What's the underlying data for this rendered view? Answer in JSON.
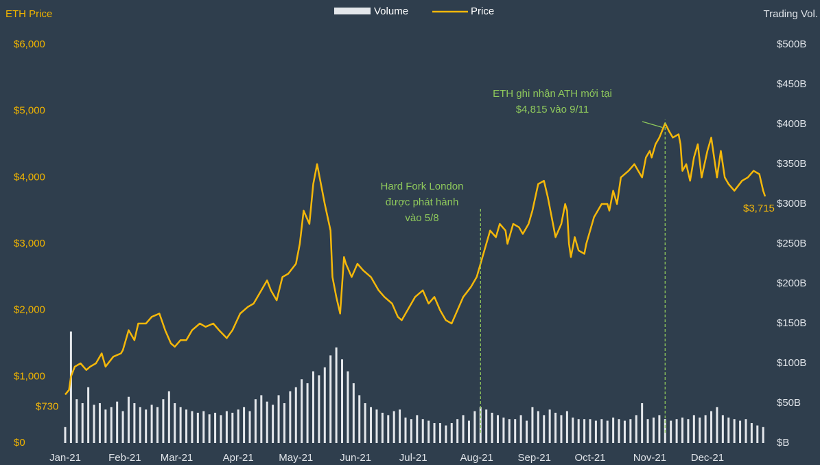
{
  "chart_data": {
    "type": "bar-line",
    "y_label": "ETH Price",
    "y2_label": "Trading Vol.",
    "xlim": [
      0,
      364
    ],
    "xticks": [
      {
        "value": 0,
        "label": "Jan-21"
      },
      {
        "value": 31,
        "label": "Feb-21"
      },
      {
        "value": 58,
        "label": "Mar-21"
      },
      {
        "value": 90,
        "label": "Apr-21"
      },
      {
        "value": 120,
        "label": "May-21"
      },
      {
        "value": 151,
        "label": "Jun-21"
      },
      {
        "value": 181,
        "label": "Jul-21"
      },
      {
        "value": 214,
        "label": "Aug-21"
      },
      {
        "value": 244,
        "label": "Sep-21"
      },
      {
        "value": 273,
        "label": "Oct-21"
      },
      {
        "value": 304,
        "label": "Nov-21"
      },
      {
        "value": 334,
        "label": "Dec-21"
      }
    ],
    "ylim": [
      0,
      6000
    ],
    "yticks": [
      {
        "value": 0,
        "label": "$0"
      },
      {
        "value": 1000,
        "label": "$1,000"
      },
      {
        "value": 2000,
        "label": "$2,000"
      },
      {
        "value": 3000,
        "label": "$3,000"
      },
      {
        "value": 4000,
        "label": "$4,000"
      },
      {
        "value": 5000,
        "label": "$5,000"
      },
      {
        "value": 6000,
        "label": "$6,000"
      }
    ],
    "y2lim": [
      0,
      500
    ],
    "y2ticks": [
      {
        "value": 0,
        "label": "$B"
      },
      {
        "value": 50,
        "label": "$50B"
      },
      {
        "value": 100,
        "label": "$100B"
      },
      {
        "value": 150,
        "label": "$150B"
      },
      {
        "value": 200,
        "label": "$200B"
      },
      {
        "value": 250,
        "label": "$250B"
      },
      {
        "value": 300,
        "label": "$300B"
      },
      {
        "value": 350,
        "label": "$350B"
      },
      {
        "value": 400,
        "label": "$400B"
      },
      {
        "value": 450,
        "label": "$450B"
      },
      {
        "value": 500,
        "label": "$500B"
      }
    ],
    "series": [
      {
        "name": "Volume",
        "type": "bar",
        "axis": "y2",
        "color": "#e4e7eb",
        "x": [
          0,
          3,
          6,
          9,
          12,
          15,
          18,
          21,
          24,
          27,
          30,
          33,
          36,
          39,
          42,
          45,
          48,
          51,
          54,
          57,
          60,
          63,
          66,
          69,
          72,
          75,
          78,
          81,
          84,
          87,
          90,
          93,
          96,
          99,
          102,
          105,
          108,
          111,
          114,
          117,
          120,
          123,
          126,
          129,
          132,
          135,
          138,
          141,
          144,
          147,
          150,
          153,
          156,
          159,
          162,
          165,
          168,
          171,
          174,
          177,
          180,
          183,
          186,
          189,
          192,
          195,
          198,
          201,
          204,
          207,
          210,
          213,
          216,
          219,
          222,
          225,
          228,
          231,
          234,
          237,
          240,
          243,
          246,
          249,
          252,
          255,
          258,
          261,
          264,
          267,
          270,
          273,
          276,
          279,
          282,
          285,
          288,
          291,
          294,
          297,
          300,
          303,
          306,
          309,
          312,
          315,
          318,
          321,
          324,
          327,
          330,
          333,
          336,
          339,
          342,
          345,
          348,
          351,
          354,
          357,
          360,
          363
        ],
        "values": [
          20,
          140,
          55,
          50,
          70,
          48,
          50,
          42,
          45,
          52,
          40,
          58,
          50,
          45,
          42,
          48,
          45,
          55,
          65,
          50,
          45,
          42,
          40,
          38,
          40,
          36,
          38,
          35,
          40,
          38,
          42,
          45,
          40,
          55,
          60,
          52,
          48,
          60,
          50,
          65,
          70,
          80,
          75,
          90,
          85,
          95,
          110,
          120,
          105,
          90,
          75,
          60,
          50,
          45,
          42,
          38,
          35,
          40,
          42,
          32,
          30,
          35,
          30,
          28,
          25,
          25,
          22,
          25,
          30,
          35,
          28,
          40,
          45,
          42,
          38,
          35,
          32,
          30,
          30,
          35,
          28,
          45,
          40,
          35,
          42,
          38,
          35,
          40,
          32,
          30,
          30,
          30,
          28,
          30,
          28,
          32,
          30,
          28,
          30,
          35,
          50,
          30,
          32,
          35,
          30,
          28,
          30,
          32,
          30,
          35,
          32,
          35,
          40,
          45,
          35,
          32,
          30,
          28,
          30,
          25,
          22,
          20
        ]
      },
      {
        "name": "Price",
        "type": "line",
        "axis": "y",
        "color": "#f5b80a",
        "x": [
          0,
          2,
          3,
          5,
          8,
          11,
          13,
          16,
          19,
          21,
          25,
          29,
          30,
          33,
          36,
          38,
          42,
          45,
          49,
          52,
          55,
          57,
          60,
          63,
          66,
          70,
          73,
          77,
          80,
          84,
          87,
          91,
          95,
          98,
          102,
          105,
          107,
          110,
          113,
          116,
          120,
          122,
          124,
          127,
          129,
          131,
          133,
          135,
          138,
          139,
          141,
          143,
          145,
          146,
          149,
          152,
          155,
          159,
          163,
          166,
          170,
          173,
          175,
          178,
          182,
          186,
          189,
          192,
          195,
          198,
          201,
          204,
          207,
          211,
          214,
          216,
          219,
          221,
          224,
          226,
          229,
          230,
          233,
          236,
          238,
          241,
          243,
          246,
          249,
          251,
          253,
          255,
          258,
          260,
          261,
          262,
          263,
          265,
          267,
          270,
          271,
          273,
          275,
          279,
          282,
          283,
          285,
          287,
          289,
          293,
          296,
          298,
          300,
          302,
          304,
          305,
          307,
          309,
          312,
          314,
          316,
          319,
          320,
          321,
          323,
          325,
          327,
          329,
          331,
          334,
          336,
          338,
          339,
          341,
          343,
          345,
          348,
          352,
          355,
          358,
          361,
          363,
          364
        ],
        "values": [
          730,
          800,
          1000,
          1150,
          1200,
          1100,
          1150,
          1200,
          1350,
          1150,
          1300,
          1350,
          1400,
          1700,
          1550,
          1800,
          1800,
          1900,
          1950,
          1700,
          1500,
          1450,
          1550,
          1550,
          1700,
          1800,
          1750,
          1800,
          1700,
          1580,
          1700,
          1950,
          2050,
          2100,
          2300,
          2450,
          2300,
          2150,
          2500,
          2550,
          2700,
          3000,
          3500,
          3300,
          3900,
          4200,
          3900,
          3600,
          3200,
          2500,
          2200,
          1950,
          2800,
          2700,
          2500,
          2700,
          2600,
          2500,
          2300,
          2200,
          2100,
          1900,
          1850,
          2000,
          2200,
          2300,
          2100,
          2200,
          2000,
          1850,
          1800,
          2000,
          2200,
          2350,
          2500,
          2700,
          3000,
          3200,
          3100,
          3300,
          3200,
          3000,
          3300,
          3250,
          3150,
          3300,
          3500,
          3900,
          3950,
          3700,
          3400,
          3100,
          3300,
          3600,
          3500,
          3000,
          2800,
          3100,
          2900,
          2850,
          3000,
          3200,
          3400,
          3600,
          3600,
          3500,
          3800,
          3600,
          4000,
          4100,
          4200,
          4100,
          4000,
          4300,
          4400,
          4300,
          4500,
          4600,
          4815,
          4700,
          4600,
          4650,
          4500,
          4100,
          4200,
          3950,
          4300,
          4500,
          4000,
          4400,
          4600,
          4200,
          4000,
          4400,
          4000,
          3900,
          3800,
          3950,
          4000,
          4100,
          4050,
          3800,
          3715
        ],
        "first_label": "$730",
        "last_label": "$3,715"
      }
    ],
    "annotations": [
      {
        "lines": [
          "Hard Fork London",
          "được phát hành",
          "vào 5/8"
        ],
        "color": "#8fc95c"
      },
      {
        "lines": [
          "ETH ghi nhận ATH mới tại",
          "$4,815 vào 9/11"
        ],
        "color": "#8fc95c"
      }
    ]
  }
}
